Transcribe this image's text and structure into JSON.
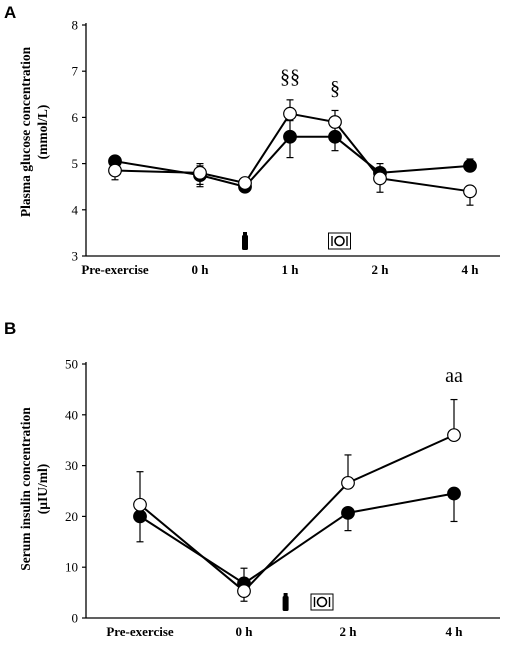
{
  "chart_data": [
    {
      "panel": "A",
      "type": "line",
      "ylabel_lines": [
        "Plasma glucose concentration",
        "(mmol/L)"
      ],
      "xlabel": "",
      "ylim": [
        3,
        8
      ],
      "yticks": [
        3,
        4,
        5,
        6,
        7,
        8
      ],
      "x_tick_labels": [
        "Pre-exercise",
        "0 h",
        "1 h",
        "2 h",
        "4 h"
      ],
      "x_tick_positions": [
        0,
        1,
        2,
        3,
        4
      ],
      "series": [
        {
          "marker": "filled",
          "x": [
            0,
            1,
            1.5,
            2,
            2.5,
            3,
            4
          ],
          "values": [
            5.05,
            4.75,
            4.5,
            5.58,
            5.58,
            4.8,
            4.95
          ],
          "err_up": [
            0,
            0.2,
            0,
            0.35,
            0.3,
            0.2,
            0.15
          ],
          "err_down": [
            0,
            0.2,
            0,
            0.45,
            0.3,
            0.2,
            0
          ]
        },
        {
          "marker": "open",
          "x": [
            0,
            1,
            1.5,
            2,
            2.5,
            3,
            4
          ],
          "values": [
            4.85,
            4.8,
            4.58,
            6.08,
            5.9,
            4.68,
            4.4
          ],
          "err_up": [
            0,
            0.2,
            0,
            0.3,
            0.25,
            0,
            0
          ],
          "err_down": [
            0.2,
            0.3,
            0,
            0,
            0,
            0.3,
            0.3
          ]
        }
      ],
      "annotations": [
        {
          "text": "§§",
          "x": 2,
          "y": 6.75
        },
        {
          "text": "§",
          "x": 2.5,
          "y": 6.5
        }
      ],
      "icons": [
        {
          "name": "exercise-bottle-icon",
          "x": 1.5
        },
        {
          "name": "meal-icon",
          "x": 2.55
        }
      ]
    },
    {
      "panel": "B",
      "type": "line",
      "ylabel_lines": [
        "Serum insulin concentration",
        "(µIU/ml)"
      ],
      "xlabel": "",
      "ylim": [
        0,
        50
      ],
      "yticks": [
        0,
        10,
        20,
        30,
        40,
        50
      ],
      "x_tick_labels": [
        "Pre-exercise",
        "0  h",
        "2 h",
        "4 h"
      ],
      "x_tick_positions": [
        0,
        1,
        2,
        3
      ],
      "series": [
        {
          "marker": "filled",
          "x": [
            0,
            1,
            2,
            3
          ],
          "values": [
            20,
            6.8,
            20.7,
            24.5
          ],
          "err_up": [
            0,
            0,
            0,
            0
          ],
          "err_down": [
            5,
            2,
            3.5,
            5.5
          ]
        },
        {
          "marker": "open",
          "x": [
            0,
            1,
            2,
            3
          ],
          "values": [
            22.3,
            5.3,
            26.6,
            36
          ],
          "err_up": [
            6.5,
            4.5,
            5.5,
            7
          ],
          "err_down": [
            0,
            2,
            0,
            0
          ]
        }
      ],
      "annotations": [
        {
          "text": "aa",
          "x": 3,
          "y": 46.5
        }
      ],
      "icons": [
        {
          "name": "exercise-bottle-icon",
          "x": 1.4
        },
        {
          "name": "meal-icon",
          "x": 1.75
        }
      ]
    }
  ]
}
